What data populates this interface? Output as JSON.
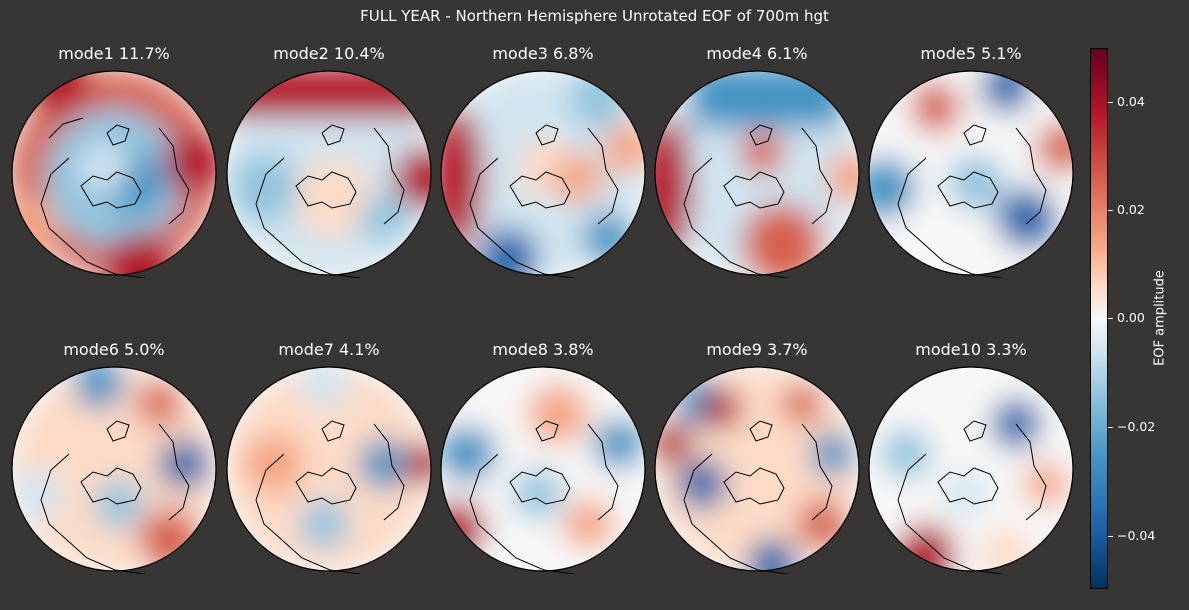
{
  "figure": {
    "title": "FULL YEAR - Northern Hemisphere Unrotated EOF of 700m hgt"
  },
  "panels": [
    {
      "label": "mode1 11.7%"
    },
    {
      "label": "mode2 10.4%"
    },
    {
      "label": "mode3 6.8%"
    },
    {
      "label": "mode4 6.1%"
    },
    {
      "label": "mode5 5.1%"
    },
    {
      "label": "mode6 5.0%"
    },
    {
      "label": "mode7 4.1%"
    },
    {
      "label": "mode8 3.8%"
    },
    {
      "label": "mode9 3.7%"
    },
    {
      "label": "mode10 3.3%"
    }
  ],
  "colorbar": {
    "label": "EOF amplitude",
    "range": [
      -0.05,
      0.05
    ],
    "ticks": [
      "0.04",
      "0.02",
      "0.00",
      "−0.02",
      "−0.04"
    ],
    "colormap": "RdBu_r",
    "colors": {
      "max": "#67001f",
      "mid": "#f7f7f7",
      "min": "#053061"
    }
  },
  "theme": {
    "background": "#383634",
    "text": "#ffffff",
    "coastline": "#000000"
  }
}
